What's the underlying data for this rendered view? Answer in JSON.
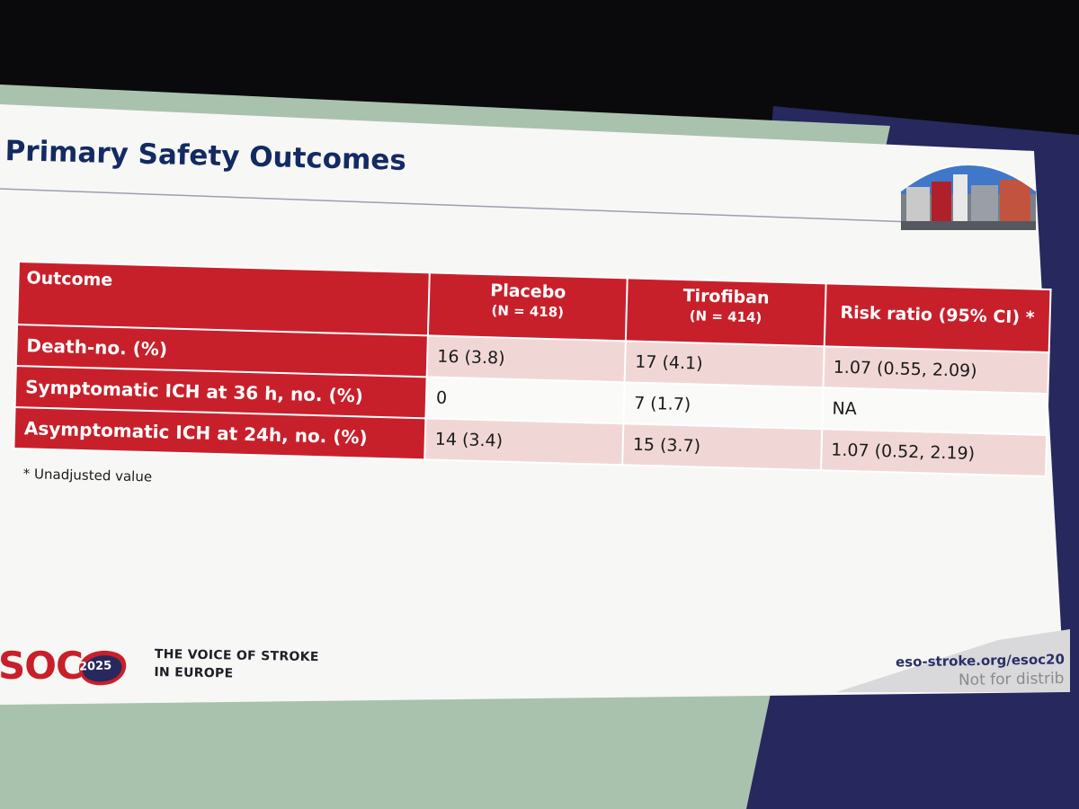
{
  "slide": {
    "title": "Primary Safety Outcomes",
    "footnote": "* Unadjusted value"
  },
  "table": {
    "headers": {
      "outcome": "Outcome",
      "placebo": "Placebo",
      "placebo_n": "(N = 418)",
      "tirofiban": "Tirofiban",
      "tirofiban_n": "(N = 414)",
      "risk_ratio": "Risk ratio (95% CI) *"
    },
    "rows": [
      {
        "label": "Death-no. (%)",
        "placebo": "16 (3.8)",
        "tirofiban": "17 (4.1)",
        "risk_ratio": "1.07 (0.55, 2.09)"
      },
      {
        "label": "Symptomatic ICH at 36 h, no. (%)",
        "placebo": "0",
        "tirofiban": "7 (1.7)",
        "risk_ratio": "NA"
      },
      {
        "label": "Asymptomatic ICH at 24h, no. (%)",
        "placebo": "14 (3.4)",
        "tirofiban": "15 (3.7)",
        "risk_ratio": "1.07 (0.52, 2.19)"
      }
    ]
  },
  "footer": {
    "logo_text": "SOC",
    "logo_year": "2025",
    "tagline_line1": "THE VOICE OF STROKE",
    "tagline_line2": "IN EUROPE",
    "url": "eso-stroke.org/esoc20",
    "notice": "Not for distrib"
  },
  "colors": {
    "accent_red": "#c8202b",
    "title_navy": "#132a63",
    "shaded_cell": "#f0d7d5",
    "panel_green": "#a9c2ad",
    "panel_navy": "#26285e"
  }
}
